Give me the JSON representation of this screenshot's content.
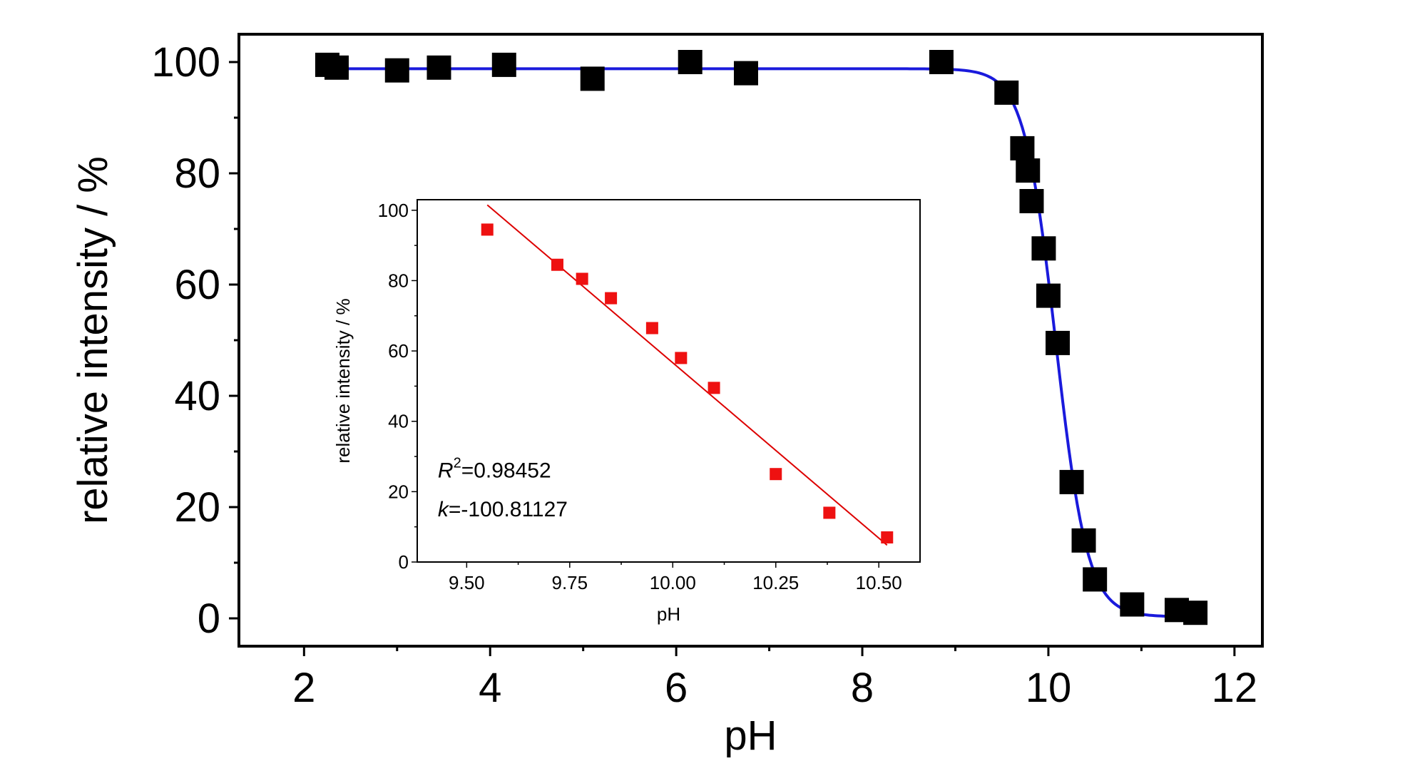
{
  "chart_data": [
    {
      "type": "scatter",
      "role": "main",
      "xlabel": "pH",
      "ylabel": "relative intensity / %",
      "xlim": [
        1.3,
        12.3
      ],
      "ylim": [
        -5,
        105
      ],
      "x_ticks": [
        2,
        4,
        6,
        8,
        10,
        12
      ],
      "y_ticks": [
        0,
        20,
        40,
        60,
        80,
        100
      ],
      "x_tick_labels": [
        "2",
        "4",
        "6",
        "8",
        "10",
        "12"
      ],
      "y_tick_labels": [
        "0",
        "20",
        "40",
        "60",
        "80",
        "100"
      ],
      "grid": false,
      "marker_color": "#000000",
      "fit_color": "#1a1adc",
      "series": [
        {
          "kind": "points",
          "x": [
            2.25,
            2.35,
            3.0,
            3.45,
            4.15,
            5.1,
            6.15,
            6.75,
            8.85,
            9.55,
            9.72,
            9.78,
            9.82,
            9.95,
            10.0,
            10.1,
            10.25,
            10.38,
            10.5,
            10.9,
            11.38,
            11.58
          ],
          "y": [
            99.5,
            99.0,
            98.5,
            99.0,
            99.5,
            97.0,
            100.0,
            98.0,
            100.0,
            94.5,
            84.5,
            80.5,
            75.0,
            66.5,
            58.0,
            49.5,
            24.5,
            14.0,
            7.0,
            2.5,
            1.5,
            1.0
          ]
        },
        {
          "kind": "fit",
          "model": "sigmoid",
          "top": 98.8,
          "bottom": 0.3,
          "x50": 10.08,
          "slope": 0.17,
          "x_range": [
            2.25,
            11.55
          ]
        }
      ]
    },
    {
      "type": "scatter",
      "role": "inset",
      "xlabel": "pH",
      "ylabel": "relative intensity / %",
      "xlim": [
        9.38,
        10.6
      ],
      "ylim": [
        0,
        103
      ],
      "x_ticks": [
        9.5,
        9.75,
        10.0,
        10.25,
        10.5
      ],
      "y_ticks": [
        0,
        20,
        40,
        60,
        80,
        100
      ],
      "x_tick_labels": [
        "9.50",
        "9.75",
        "10.00",
        "10.25",
        "10.50"
      ],
      "y_tick_labels": [
        "0",
        "20",
        "40",
        "60",
        "80",
        "100"
      ],
      "grid": false,
      "marker_color": "#ee1111",
      "fit_color": "#dd0000",
      "series": [
        {
          "kind": "points",
          "x": [
            9.55,
            9.72,
            9.78,
            9.85,
            9.95,
            10.02,
            10.1,
            10.25,
            10.38,
            10.52
          ],
          "y": [
            94.5,
            84.5,
            80.5,
            75.0,
            66.5,
            58.0,
            49.5,
            25.0,
            14.0,
            7.0
          ]
        },
        {
          "kind": "fit",
          "model": "linear",
          "x_range": [
            9.55,
            10.52
          ]
        }
      ],
      "annotations": {
        "r2_symbol": "R",
        "r2_superscript": "2",
        "r2_value": "=0.98452",
        "k_symbol": "k",
        "k_value": "=-100.81127"
      }
    }
  ]
}
